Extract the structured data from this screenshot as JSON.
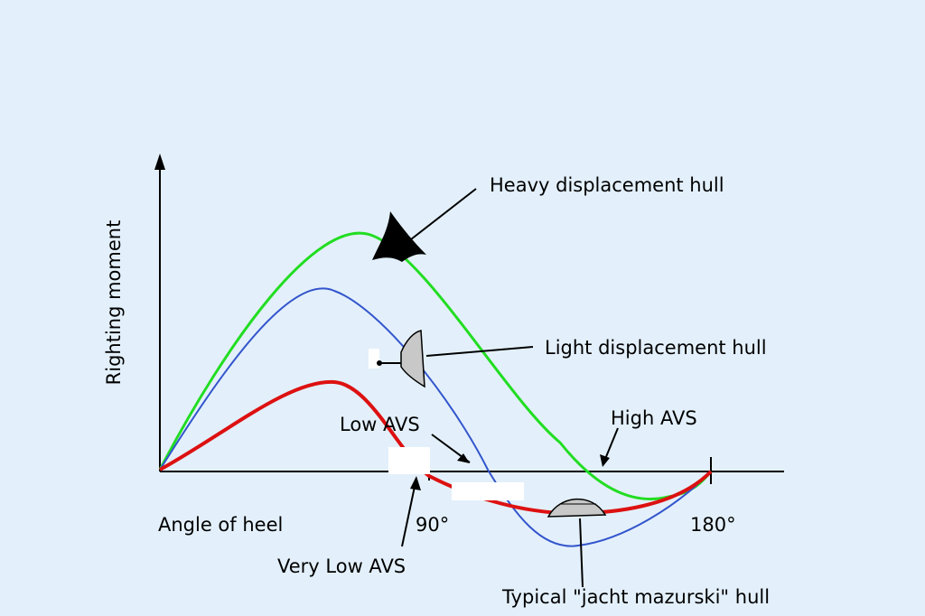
{
  "colors": {
    "background": "#e3f0fb",
    "axis": "#000000",
    "heavy_curve": "#22dd22",
    "light_curve": "#3355cc",
    "mazurski_curve": "#dd1111",
    "hull_fill_light": "#c8c8c8"
  },
  "axes": {
    "y_label": "Righting moment",
    "x_label": "Angle of heel",
    "tick_90": "90°",
    "tick_180": "180°"
  },
  "annotations": {
    "heavy": "Heavy displacement hull",
    "light": "Light displacement hull",
    "high_avs": "High AVS",
    "low_avs": "Low AVS",
    "very_low_avs": "Very Low AVS",
    "mazurski": "Typical \"jacht mazurski\" hull"
  },
  "icons": [
    "heavy-hull-section-icon",
    "light-hull-section-icon",
    "mazurski-hull-section-icon"
  ]
}
